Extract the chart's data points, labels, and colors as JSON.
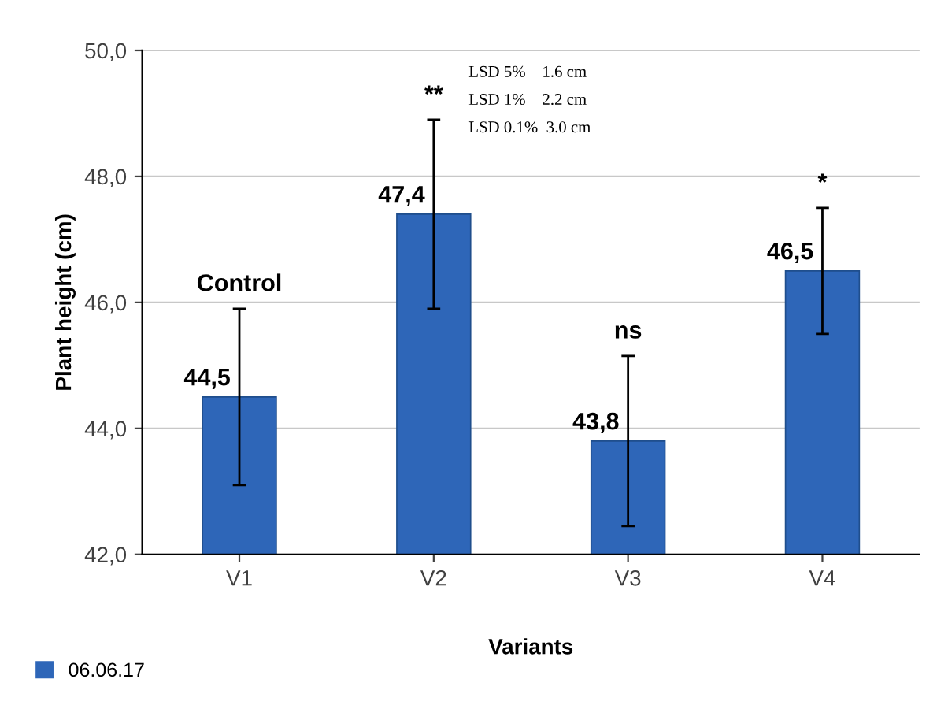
{
  "chart_data": {
    "type": "bar",
    "xlabel": "Variants",
    "ylabel": "Plant height (cm)",
    "categories": [
      "V1",
      "V2",
      "V3",
      "V4"
    ],
    "series": [
      {
        "name": "06.06.17",
        "color": "#2e66b8",
        "values": [
          44.5,
          47.4,
          43.8,
          46.5
        ],
        "errors": [
          1.4,
          1.5,
          1.35,
          1.0
        ],
        "value_labels": [
          "44,5",
          "47,4",
          "43,8",
          "46,5"
        ]
      }
    ],
    "ylim": [
      42,
      50
    ],
    "yticks": [
      {
        "value": 42,
        "label": "42,0"
      },
      {
        "value": 44,
        "label": "44,0"
      },
      {
        "value": 46,
        "label": "46,0"
      },
      {
        "value": 48,
        "label": "48,0"
      },
      {
        "value": 50,
        "label": "50,0"
      }
    ],
    "grid": "y",
    "legend": "bottom left",
    "annotations": [
      "Control",
      "**",
      "ns",
      "*",
      "LSD 5%    1.6 cm",
      "LSD 1%    2.2 cm",
      "LSD 0.1%  3.0 cm"
    ]
  }
}
